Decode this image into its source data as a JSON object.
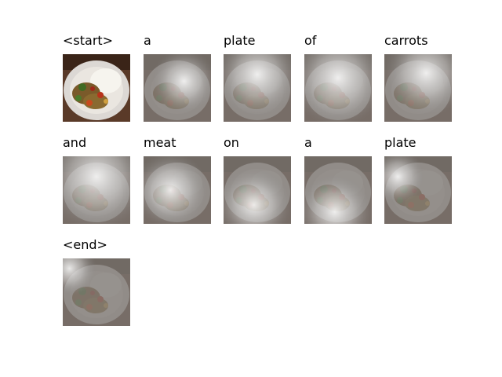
{
  "tokens": [
    "<start>",
    "a",
    "plate",
    "of",
    "carrots",
    "and",
    "meat",
    "on",
    "a",
    "plate",
    "<end>"
  ]
}
